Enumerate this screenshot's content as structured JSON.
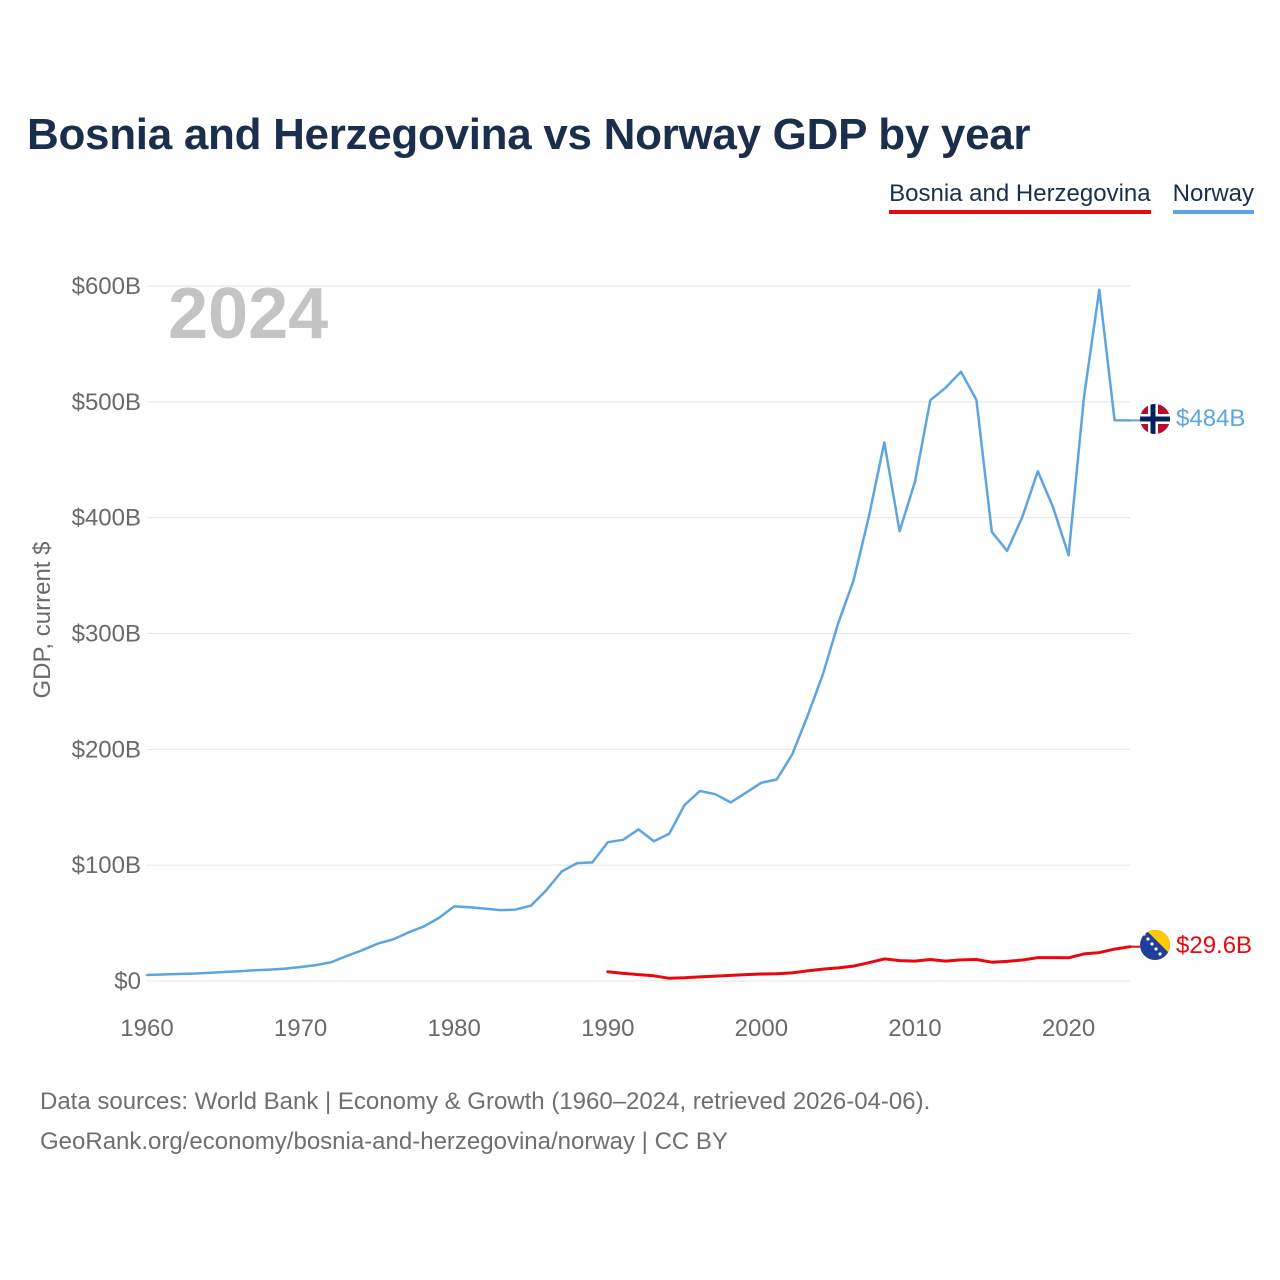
{
  "title": "Bosnia and Herzegovina vs Norway GDP by year",
  "legend": [
    {
      "label": "Bosnia and Herzegovina",
      "color": "#e8080f"
    },
    {
      "label": "Norway",
      "color": "#5da5e0"
    }
  ],
  "footer": {
    "line1": "Data sources: World Bank | Economy & Growth (1960–2024, retrieved 2026-04-06).",
    "line2": "GeoRank.org/economy/bosnia-and-herzegovina/norway | CC BY"
  },
  "chart_data": {
    "type": "line",
    "title": "Bosnia and Herzegovina vs Norway GDP by year",
    "year_watermark": "2024",
    "xlabel": "",
    "ylabel": "GDP, current $",
    "xlim": [
      1960,
      2024
    ],
    "ylim": [
      0,
      600
    ],
    "x_ticks": [
      1960,
      1970,
      1980,
      1990,
      2000,
      2010,
      2020
    ],
    "y_ticks": [
      0,
      100,
      200,
      300,
      400,
      500,
      600
    ],
    "y_tick_labels": [
      "$0",
      "$100B",
      "$200B",
      "$300B",
      "$400B",
      "$500B",
      "$600B"
    ],
    "grid": true,
    "series": [
      {
        "name": "Norway",
        "color": "#5da5e0",
        "end_label": "$484B",
        "flag": "norway-flag",
        "x": [
          1960,
          1961,
          1962,
          1963,
          1964,
          1965,
          1966,
          1967,
          1968,
          1969,
          1970,
          1971,
          1972,
          1973,
          1974,
          1975,
          1976,
          1977,
          1978,
          1979,
          1980,
          1981,
          1982,
          1983,
          1984,
          1985,
          1986,
          1987,
          1988,
          1989,
          1990,
          1991,
          1992,
          1993,
          1994,
          1995,
          1996,
          1997,
          1998,
          1999,
          2000,
          2001,
          2002,
          2003,
          2004,
          2005,
          2006,
          2007,
          2008,
          2009,
          2010,
          2011,
          2012,
          2013,
          2014,
          2015,
          2016,
          2017,
          2018,
          2019,
          2020,
          2021,
          2022,
          2023,
          2024
        ],
        "values": [
          5.2,
          5.6,
          6.0,
          6.4,
          7.0,
          7.8,
          8.4,
          9.2,
          9.8,
          10.7,
          12.1,
          13.7,
          16.2,
          21.6,
          26.5,
          32.2,
          35.8,
          41.8,
          47.0,
          54.4,
          64.4,
          63.6,
          62.5,
          61.2,
          61.6,
          65.1,
          78.4,
          94.5,
          101.8,
          102.4,
          119.8,
          121.9,
          130.9,
          120.6,
          127.1,
          152.0,
          164.0,
          161.3,
          154.2,
          162.6,
          171.2,
          174.0,
          195.4,
          228.7,
          264.4,
          308.9,
          345.6,
          400.9,
          465.0,
          388.3,
          431.1,
          501.4,
          512.3,
          526.0,
          501.7,
          387.8,
          371.3,
          401.0,
          440.0,
          408.7,
          367.6,
          503.6,
          596.8,
          484.1,
          484.0
        ]
      },
      {
        "name": "Bosnia and Herzegovina",
        "color": "#e8080f",
        "end_label": "$29.6B",
        "flag": "bosnia-flag",
        "x": [
          1990,
          1991,
          1992,
          1993,
          1994,
          1995,
          1996,
          1997,
          1998,
          1999,
          2000,
          2001,
          2002,
          2003,
          2004,
          2005,
          2006,
          2007,
          2008,
          2009,
          2010,
          2011,
          2012,
          2013,
          2014,
          2015,
          2016,
          2017,
          2018,
          2019,
          2020,
          2021,
          2022,
          2023,
          2024
        ],
        "values": [
          8.0,
          6.6,
          5.5,
          4.5,
          2.3,
          2.8,
          3.5,
          4.2,
          4.8,
          5.5,
          6.0,
          6.2,
          7.0,
          8.7,
          10.3,
          11.3,
          12.9,
          15.8,
          19.1,
          17.6,
          17.2,
          18.6,
          17.2,
          18.2,
          18.6,
          16.2,
          16.9,
          18.1,
          20.2,
          20.2,
          20.0,
          23.4,
          24.5,
          27.5,
          29.6
        ]
      }
    ]
  }
}
